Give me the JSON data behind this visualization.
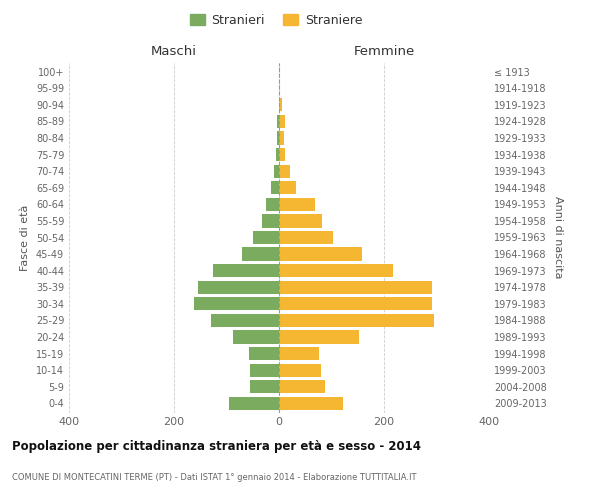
{
  "age_groups": [
    "0-4",
    "5-9",
    "10-14",
    "15-19",
    "20-24",
    "25-29",
    "30-34",
    "35-39",
    "40-44",
    "45-49",
    "50-54",
    "55-59",
    "60-64",
    "65-69",
    "70-74",
    "75-79",
    "80-84",
    "85-89",
    "90-94",
    "95-99",
    "100+"
  ],
  "birth_years": [
    "2009-2013",
    "2004-2008",
    "1999-2003",
    "1994-1998",
    "1989-1993",
    "1984-1988",
    "1979-1983",
    "1974-1978",
    "1969-1973",
    "1964-1968",
    "1959-1963",
    "1954-1958",
    "1949-1953",
    "1944-1948",
    "1939-1943",
    "1934-1938",
    "1929-1933",
    "1924-1928",
    "1919-1923",
    "1914-1918",
    "≤ 1913"
  ],
  "maschi": [
    95,
    55,
    55,
    57,
    88,
    130,
    162,
    155,
    125,
    70,
    50,
    32,
    25,
    15,
    10,
    5,
    4,
    3,
    0,
    0,
    0
  ],
  "femmine": [
    122,
    87,
    80,
    77,
    152,
    295,
    292,
    292,
    218,
    158,
    102,
    82,
    68,
    32,
    20,
    12,
    9,
    12,
    6,
    0,
    0
  ],
  "color_maschi": "#7aab5e",
  "color_femmine": "#f5b731",
  "title": "Popolazione per cittadinanza straniera per età e sesso - 2014",
  "subtitle": "COMUNE DI MONTECATINI TERME (PT) - Dati ISTAT 1° gennaio 2014 - Elaborazione TUTTITALIA.IT",
  "xlabel_left": "Maschi",
  "xlabel_right": "Femmine",
  "ylabel_left": "Fasce di età",
  "ylabel_right": "Anni di nascita",
  "legend_maschi": "Stranieri",
  "legend_femmine": "Straniere",
  "xlim": 400,
  "background_color": "#ffffff",
  "grid_color": "#cccccc"
}
